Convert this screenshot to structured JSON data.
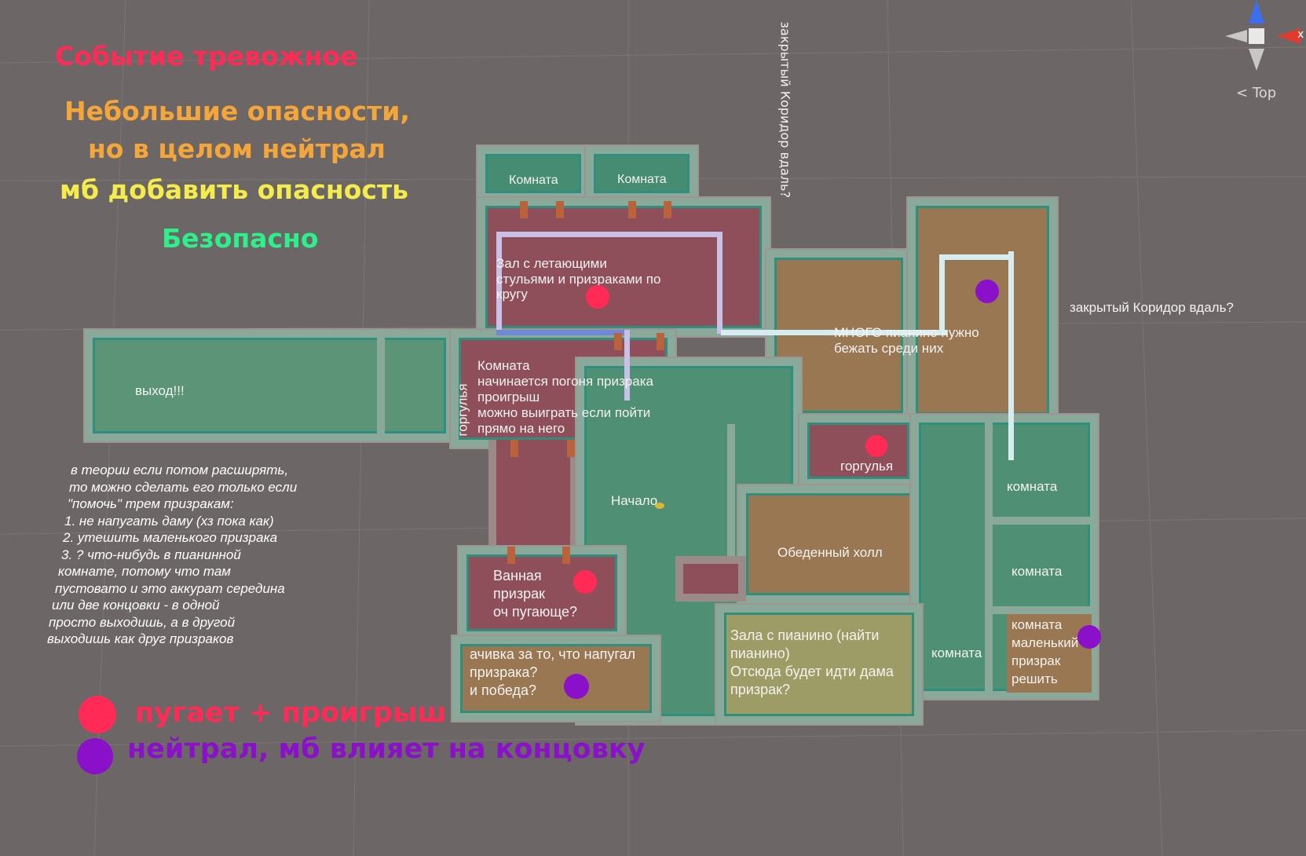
{
  "legend": {
    "alarm": "Событие тревожное",
    "small_danger_1": "Небольшие опасности,",
    "small_danger_2": "но в целом нейтрал",
    "maybe_danger": "мб добавить опасность",
    "safe": "Безопасно",
    "red_dot": "пугает  + проигрыш",
    "purple_dot": "нейтрал, мб влияет на концовку"
  },
  "colors": {
    "alarm": "#ff2a55",
    "small_danger": "#f5a63a",
    "maybe_danger": "#f4ec4c",
    "safe": "#2ef08a",
    "purple": "#8b10c9"
  },
  "side_notes": {
    "corridor_vertical": "закрытый Коридор вдаль?",
    "corridor_right": "закрытый Коридор вдаль?"
  },
  "gizmo": {
    "view_label": "Top",
    "axis_x": "x"
  },
  "rooms": {
    "room_top_1": "Комната",
    "room_top_2": "Комната",
    "hall_flying": [
      "Зал с летающими",
      "стульями и призраками по",
      "кругу"
    ],
    "piano_many": [
      "МНОГО пианино нужно",
      "бежать среди них"
    ],
    "exit": "выход!!!",
    "gargoyle_vertical": "горгулья",
    "chase_room": [
      "Комната",
      "начинается погоня призрака",
      "проигрыш",
      "можно выиграть если пойти",
      "прямо на него"
    ],
    "gargoyle": "горгулья",
    "start": "Начало",
    "dining": "Обеденный холл",
    "room_right_1": "комната",
    "room_right_2": "комната",
    "room_right_3": "комната",
    "room_little_ghost": [
      "комната",
      "маленький",
      "призрак",
      "решить"
    ],
    "bathroom": [
      "Ванная",
      "призрак",
      "оч пугающе?"
    ],
    "achievement": [
      "ачивка за то, что напугал",
      "призрака?",
      "и победа?"
    ],
    "piano_hall": [
      "Зала с пианино (найти",
      "пианино)",
      "Отсюда будет идти дама",
      "призрак?"
    ]
  },
  "notes": [
    "в теории если потом расширять,",
    "то можно сделать его только если",
    "\"помочь\" трем призракам:",
    "1. не напугать даму (хз пока как)",
    "2. утешить маленького призрака",
    "3. ? что-нибудь в пианинной",
    "комнате, потому что там",
    "пустовато и это аккурат середина",
    "",
    "или две концовки - в одной",
    "просто выходишь, а в другой",
    "выходишь как друг призраков"
  ]
}
